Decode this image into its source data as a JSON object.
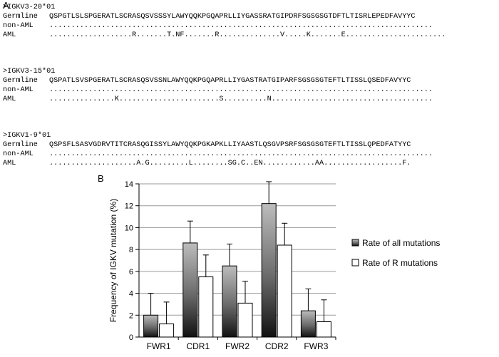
{
  "panel_a_label": "A",
  "panel_b_label": "B",
  "alignments": [
    {
      "header": ">IGKV3-20*01",
      "rows": [
        {
          "label": "Germline",
          "seq": "QSPGTLSLSPGERATLSCRASQSVSSSYLAWYQQKPGQAPRLLIYGASSRATGIPDRFSGSGSGTDFTLTISRLEPEDFAVYYC"
        },
        {
          "label": "non-AML",
          "seq": "........................................................................................"
        },
        {
          "label": "AML",
          "seq": "...................R.......T.NF.......R..............V.....K.......E......................."
        }
      ]
    },
    {
      "header": ">IGKV3-15*01",
      "rows": [
        {
          "label": "Germline",
          "seq": "QSPATLSVSPGERATLSCRASQSVSSNLAWYQQKPGQAPRLLIYGASTRATGIPARFSGSGSGTEFTLTISSLQSEDFAVYYC"
        },
        {
          "label": "non-AML",
          "seq": "........................................................................................"
        },
        {
          "label": "AML",
          "seq": "...............K.......................S..........N....................................."
        }
      ]
    },
    {
      "header": ">IGKV1-9*01",
      "rows": [
        {
          "label": "Germline",
          "seq": "QSPSFLSASVGDRVTITCRASQGISSYLAWYQQKPGKAPKLLIYAASTLQSGVPSRFSGSGSGTEFTLTISSLQPEDFATYYC"
        },
        {
          "label": "non-AML",
          "seq": "........................................................................................"
        },
        {
          "label": "AML",
          "seq": "....................A.G.........L........SG.C..EN............AA..................F."
        }
      ]
    }
  ],
  "chart_data": {
    "type": "bar",
    "ylabel": "Frequency of IGKV mutation (%)",
    "xlabel": "",
    "ylim": [
      0,
      14
    ],
    "yticks": [
      "0",
      "2",
      "4",
      "6",
      "8",
      "10",
      "12",
      "14"
    ],
    "categories": [
      "FWR1",
      "CDR1",
      "FWR2",
      "CDR2",
      "FWR3"
    ],
    "series": [
      {
        "name": "Rate of all mutations",
        "values": [
          2.0,
          8.6,
          6.5,
          12.2,
          2.4
        ],
        "errors": [
          2.0,
          2.0,
          2.0,
          2.0,
          2.0
        ],
        "style": "gradient"
      },
      {
        "name": "Rate of R mutations",
        "values": [
          1.2,
          5.5,
          3.1,
          8.4,
          1.4
        ],
        "errors": [
          2.0,
          2.0,
          2.0,
          2.0,
          2.0
        ],
        "style": "white"
      }
    ],
    "grid": true,
    "legend": "right"
  }
}
